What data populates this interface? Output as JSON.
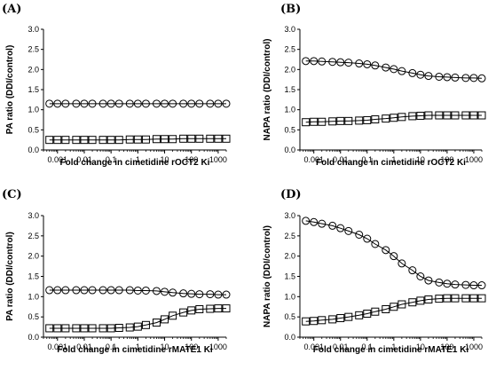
{
  "chart_data": [
    {
      "panel": "(A)",
      "type": "scatter",
      "xlabel": "Fold change in cimetidine rOCT2 Ki",
      "ylabel": "PA ratio (DDI/control)",
      "xscale": "log",
      "xlim": [
        0.0003,
        2000
      ],
      "ylim": [
        0,
        3.0
      ],
      "xticks": [
        0.001,
        0.01,
        0.1,
        1,
        10,
        100,
        1000
      ],
      "xtick_labels": [
        "0.001",
        "0.01",
        "0.1",
        "1",
        "10",
        "100",
        "1000"
      ],
      "yticks": [
        0,
        0.5,
        1.0,
        1.5,
        2.0,
        2.5,
        3.0
      ],
      "ytick_labels": [
        "0.0",
        "0.5",
        "1.0",
        "1.5",
        "2.0",
        "2.5",
        "3.0"
      ],
      "x": [
        0.0005,
        0.001,
        0.002,
        0.005,
        0.01,
        0.02,
        0.05,
        0.1,
        0.2,
        0.5,
        1,
        2,
        5,
        10,
        20,
        50,
        100,
        200,
        500,
        1000,
        2000
      ],
      "series": [
        {
          "marker": "circle",
          "values": [
            1.15,
            1.15,
            1.15,
            1.15,
            1.15,
            1.15,
            1.15,
            1.15,
            1.15,
            1.15,
            1.15,
            1.15,
            1.15,
            1.15,
            1.15,
            1.15,
            1.15,
            1.15,
            1.15,
            1.15,
            1.15
          ]
        },
        {
          "marker": "square",
          "values": [
            0.25,
            0.25,
            0.25,
            0.25,
            0.25,
            0.25,
            0.25,
            0.25,
            0.25,
            0.26,
            0.26,
            0.26,
            0.27,
            0.27,
            0.27,
            0.28,
            0.28,
            0.28,
            0.28,
            0.28,
            0.28
          ]
        }
      ]
    },
    {
      "panel": "(B)",
      "type": "scatter",
      "xlabel": "Fold change in cimetidine rOCT2 Ki",
      "ylabel": "NAPA ratio (DDI/control)",
      "xscale": "log",
      "xlim": [
        0.0003,
        2000
      ],
      "ylim": [
        0,
        3.0
      ],
      "xticks": [
        0.001,
        0.01,
        0.1,
        1,
        10,
        100,
        1000
      ],
      "xtick_labels": [
        "0.001",
        "0.01",
        "0.1",
        "1",
        "10",
        "100",
        "1000"
      ],
      "yticks": [
        0,
        0.5,
        1.0,
        1.5,
        2.0,
        2.5,
        3.0
      ],
      "ytick_labels": [
        "0.0",
        "0.5",
        "1.0",
        "1.5",
        "2.0",
        "2.5",
        "3.0"
      ],
      "x": [
        0.0005,
        0.001,
        0.002,
        0.005,
        0.01,
        0.02,
        0.05,
        0.1,
        0.2,
        0.5,
        1,
        2,
        5,
        10,
        20,
        50,
        100,
        200,
        500,
        1000,
        2000
      ],
      "series": [
        {
          "marker": "circle",
          "values": [
            2.21,
            2.21,
            2.2,
            2.19,
            2.18,
            2.17,
            2.15,
            2.13,
            2.1,
            2.05,
            2.01,
            1.96,
            1.91,
            1.87,
            1.84,
            1.82,
            1.81,
            1.8,
            1.79,
            1.79,
            1.78
          ]
        },
        {
          "marker": "square",
          "values": [
            0.69,
            0.7,
            0.7,
            0.71,
            0.72,
            0.72,
            0.73,
            0.74,
            0.76,
            0.78,
            0.8,
            0.82,
            0.84,
            0.85,
            0.86,
            0.86,
            0.86,
            0.86,
            0.86,
            0.86,
            0.86
          ]
        }
      ]
    },
    {
      "panel": "(C)",
      "type": "scatter",
      "xlabel": "Fold change in cimetidine rMATE1 Ki",
      "ylabel": "PA ratio (DDI/control)",
      "xscale": "log",
      "xlim": [
        0.0003,
        2000
      ],
      "ylim": [
        0,
        3.0
      ],
      "xticks": [
        0.001,
        0.01,
        0.1,
        1,
        10,
        100,
        1000
      ],
      "xtick_labels": [
        "0.001",
        "0.01",
        "0.1",
        "1",
        "10",
        "100",
        "1000"
      ],
      "yticks": [
        0,
        0.5,
        1.0,
        1.5,
        2.0,
        2.5,
        3.0
      ],
      "ytick_labels": [
        "0.0",
        "0.5",
        "1.0",
        "1.5",
        "2.0",
        "2.5",
        "3.0"
      ],
      "x": [
        0.0005,
        0.001,
        0.002,
        0.005,
        0.01,
        0.02,
        0.05,
        0.1,
        0.2,
        0.5,
        1,
        2,
        5,
        10,
        20,
        50,
        100,
        200,
        500,
        1000,
        2000
      ],
      "series": [
        {
          "marker": "circle",
          "values": [
            1.16,
            1.16,
            1.16,
            1.16,
            1.16,
            1.16,
            1.16,
            1.16,
            1.16,
            1.16,
            1.15,
            1.15,
            1.14,
            1.12,
            1.1,
            1.08,
            1.07,
            1.06,
            1.06,
            1.05,
            1.05
          ]
        },
        {
          "marker": "square",
          "values": [
            0.22,
            0.22,
            0.22,
            0.22,
            0.22,
            0.22,
            0.22,
            0.22,
            0.23,
            0.24,
            0.26,
            0.3,
            0.36,
            0.44,
            0.53,
            0.61,
            0.66,
            0.69,
            0.7,
            0.71,
            0.71
          ]
        }
      ]
    },
    {
      "panel": "(D)",
      "type": "scatter",
      "xlabel": "Fold change in cimetidine rMATE1 Ki",
      "ylabel": "NAPA ratio (DDI/control)",
      "xscale": "log",
      "xlim": [
        0.0003,
        2000
      ],
      "ylim": [
        0,
        3.0
      ],
      "xticks": [
        0.001,
        0.01,
        0.1,
        1,
        10,
        100,
        1000
      ],
      "xtick_labels": [
        "0.001",
        "0.01",
        "0.1",
        "1",
        "10",
        "100",
        "1000"
      ],
      "yticks": [
        0,
        0.5,
        1.0,
        1.5,
        2.0,
        2.5,
        3.0
      ],
      "ytick_labels": [
        "0.0",
        "0.5",
        "1.0",
        "1.5",
        "2.0",
        "2.5",
        "3.0"
      ],
      "x": [
        0.0005,
        0.001,
        0.002,
        0.005,
        0.01,
        0.02,
        0.05,
        0.1,
        0.2,
        0.5,
        1,
        2,
        5,
        10,
        20,
        50,
        100,
        200,
        500,
        1000,
        2000
      ],
      "series": [
        {
          "marker": "circle",
          "values": [
            2.87,
            2.84,
            2.8,
            2.75,
            2.69,
            2.62,
            2.53,
            2.43,
            2.3,
            2.15,
            2.0,
            1.82,
            1.65,
            1.5,
            1.4,
            1.35,
            1.32,
            1.3,
            1.29,
            1.28,
            1.28
          ]
        },
        {
          "marker": "square",
          "values": [
            0.39,
            0.4,
            0.42,
            0.44,
            0.47,
            0.5,
            0.54,
            0.58,
            0.63,
            0.69,
            0.75,
            0.81,
            0.86,
            0.9,
            0.93,
            0.95,
            0.96,
            0.96,
            0.96,
            0.96,
            0.96
          ]
        }
      ]
    }
  ]
}
